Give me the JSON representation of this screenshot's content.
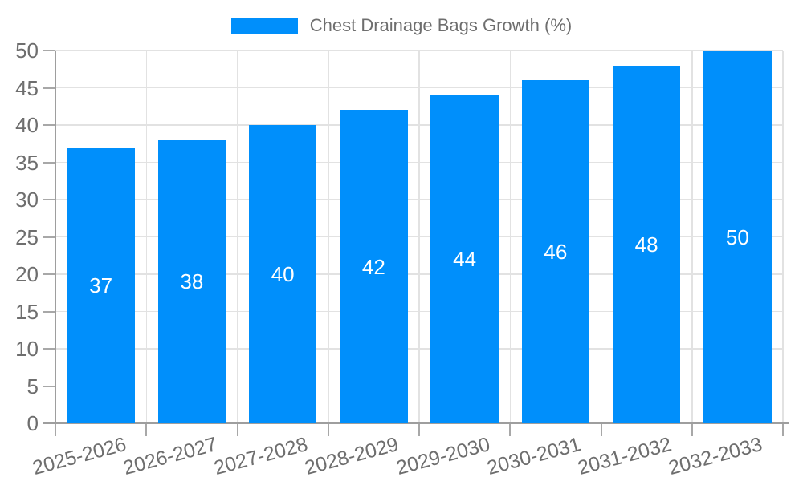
{
  "chart_data": {
    "type": "bar",
    "title": "Chest Drainage Bags Growth (%)",
    "xlabel": "",
    "ylabel": "",
    "categories": [
      "2025-2026",
      "2026-2027",
      "2027-2028",
      "2028-2029",
      "2029-2030",
      "2030-2031",
      "2031-2032",
      "2032-2033"
    ],
    "values": [
      37,
      38,
      40,
      42,
      44,
      46,
      48,
      50
    ],
    "ylim": [
      0,
      50
    ],
    "yticks": [
      0,
      5,
      10,
      15,
      20,
      25,
      30,
      35,
      40,
      45,
      50
    ],
    "grid": true,
    "x_label_rotation_deg": -15,
    "legend": {
      "position": "top",
      "label": "Chest Drainage Bags Growth (%)"
    },
    "colors": {
      "bar": "#008FFB",
      "data_label": "#FFFFFF",
      "axis_label": "#6E6E6E",
      "legend_label": "#6E6E6E",
      "grid_line": "#E2E2E2",
      "axis_line": "#9E9E9E",
      "tick": "#A8A8A8",
      "background": "#FFFFFF"
    }
  }
}
